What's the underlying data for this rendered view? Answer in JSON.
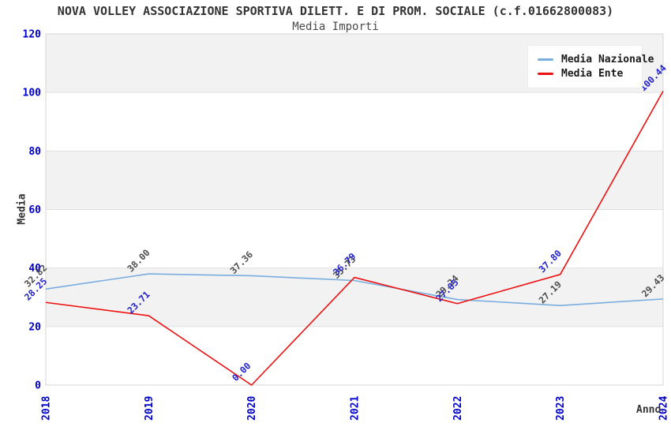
{
  "chart_data": {
    "type": "line",
    "title": "NOVA VOLLEY ASSOCIAZIONE SPORTIVA DILETT. E DI PROM. SOCIALE (c.f.01662800083)",
    "subtitle": "Media Importi",
    "x": [
      "2018",
      "2019",
      "2020",
      "2021",
      "2022",
      "2023",
      "2024"
    ],
    "series": [
      {
        "name": "Media Nazionale",
        "color": "#79ADDF",
        "label_color": "#4d4d4d",
        "values": [
          32.82,
          38.0,
          37.36,
          35.73,
          29.24,
          27.19,
          29.43
        ]
      },
      {
        "name": "Media Ente",
        "color": "#EE1111",
        "label_color": "#2222CC",
        "values": [
          28.25,
          23.71,
          0.0,
          36.79,
          27.85,
          37.8,
          100.44
        ]
      }
    ],
    "xlabel": "Anno",
    "ylabel": "Media",
    "ylim": [
      0,
      120
    ],
    "yticks": [
      0,
      20,
      40,
      60,
      80,
      100,
      120
    ],
    "legend_position": "top-right",
    "grid": "alternating-horizontal-bands",
    "colors": {
      "tick_label": "#0000CC",
      "band": "#F2F2F2",
      "gridline": "#E0E0E0",
      "border": "#D4D4D4",
      "title_text": "#333333"
    }
  }
}
